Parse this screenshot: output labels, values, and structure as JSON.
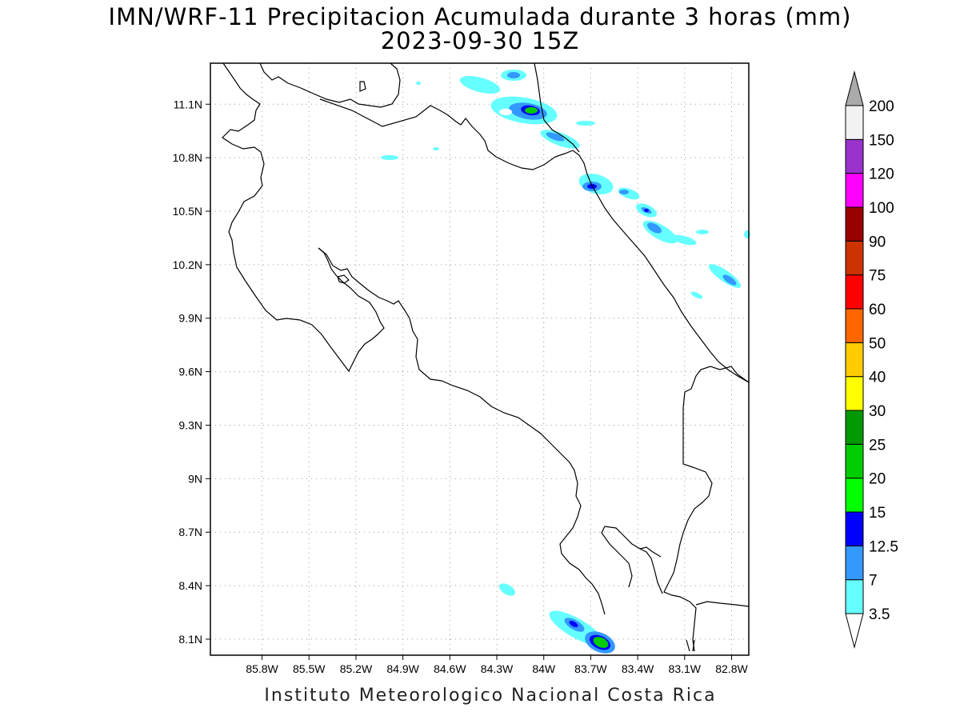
{
  "title_line1": "IMN/WRF-11 Precipitacion Acumulada durante 3 horas (mm)",
  "title_line2": "2023-09-30 15Z",
  "footer": "Instituto Meteorologico Nacional Costa Rica",
  "map": {
    "lon_range": [
      -86.13,
      -82.69
    ],
    "lat_range": [
      8.01,
      11.33
    ],
    "lon_ticks": [
      "85.8W",
      "85.5W",
      "85.2W",
      "84.9W",
      "84.6W",
      "84.3W",
      "84W",
      "83.7W",
      "83.4W",
      "83.1W",
      "82.8W"
    ],
    "lon_tick_values": [
      -85.8,
      -85.5,
      -85.2,
      -84.9,
      -84.6,
      -84.3,
      -84.0,
      -83.7,
      -83.4,
      -83.1,
      -82.8
    ],
    "lat_ticks": [
      "11.1N",
      "10.8N",
      "10.5N",
      "10.2N",
      "9.9N",
      "9.6N",
      "9.3N",
      "9N",
      "8.7N",
      "8.4N",
      "8.1N"
    ],
    "lat_tick_values": [
      11.1,
      10.8,
      10.5,
      10.2,
      9.9,
      9.6,
      9.3,
      9.0,
      8.7,
      8.4,
      8.1
    ],
    "grid": "dotted"
  },
  "colorbar": {
    "labels": [
      "3.5",
      "7",
      "12.5",
      "15",
      "20",
      "25",
      "30",
      "40",
      "50",
      "60",
      "75",
      "90",
      "100",
      "120",
      "150",
      "200"
    ],
    "colors": [
      "#66ffff",
      "#3399ff",
      "#0000ff",
      "#00ff00",
      "#00cc00",
      "#009900",
      "#ffff00",
      "#ffcc00",
      "#ff6600",
      "#ff0000",
      "#cc3300",
      "#990000",
      "#ff00ff",
      "#9933cc",
      "#f2f2f2",
      "#aaaaaa"
    ]
  }
}
